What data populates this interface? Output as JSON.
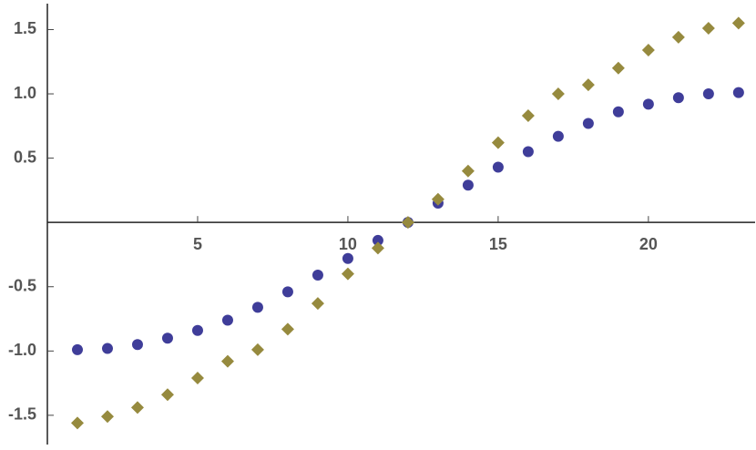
{
  "chart_data": {
    "type": "scatter",
    "x": [
      1,
      2,
      3,
      4,
      5,
      6,
      7,
      8,
      9,
      10,
      11,
      12,
      13,
      14,
      15,
      16,
      17,
      18,
      19,
      20,
      21,
      22,
      23
    ],
    "series": [
      {
        "color": "#3f3d99",
        "marker": "circle",
        "values": [
          -0.99,
          -0.98,
          -0.95,
          -0.9,
          -0.84,
          -0.76,
          -0.66,
          -0.54,
          -0.41,
          -0.28,
          -0.14,
          0.0,
          0.15,
          0.29,
          0.43,
          0.55,
          0.67,
          0.77,
          0.86,
          0.92,
          0.97,
          1.0,
          1.01
        ]
      },
      {
        "color": "#968a3e",
        "marker": "diamond",
        "values": [
          -1.56,
          -1.51,
          -1.44,
          -1.34,
          -1.21,
          -1.08,
          -0.99,
          -0.83,
          -0.63,
          -0.4,
          -0.2,
          0.0,
          0.18,
          0.4,
          0.62,
          0.83,
          1.0,
          1.07,
          1.2,
          1.34,
          1.44,
          1.51,
          1.55
        ]
      }
    ],
    "xlim": [
      0,
      23.55
    ],
    "ylim": [
      -1.77,
      1.73
    ],
    "xticks": [
      5,
      10,
      15,
      20
    ],
    "yticks": [
      {
        "value": -1.5,
        "label": "-1.5"
      },
      {
        "value": -1.0,
        "label": "-1.0"
      },
      {
        "value": -0.5,
        "label": "-0.5"
      },
      {
        "value": 0.5,
        "label": "0.5"
      },
      {
        "value": 1.0,
        "label": "1.0"
      },
      {
        "value": 1.5,
        "label": "1.5"
      }
    ]
  }
}
